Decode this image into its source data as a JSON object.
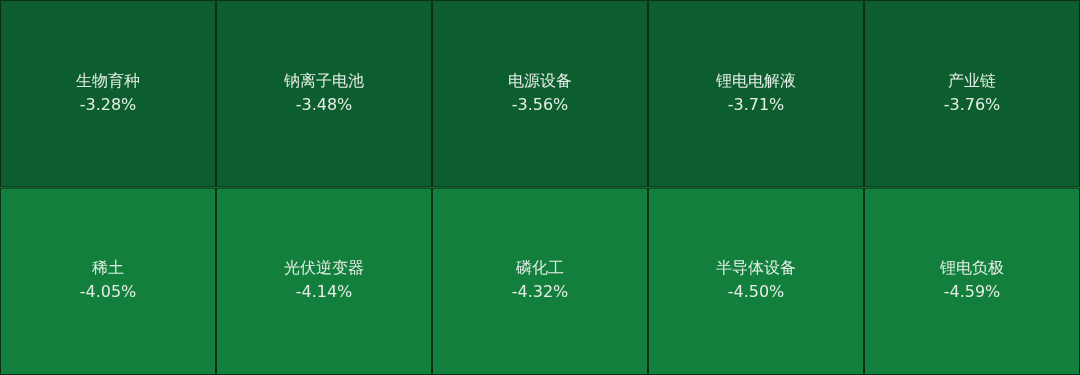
{
  "chart_data": {
    "type": "other",
    "categories": [
      "生物育种",
      "钠离子电池",
      "电源设备",
      "锂电电解液",
      "产业链",
      "稀土",
      "光伏逆变器",
      "磷化工",
      "半导体设备",
      "锂电负极"
    ],
    "values": [
      -3.28,
      -3.48,
      -3.56,
      -3.71,
      -3.76,
      -4.05,
      -4.14,
      -4.32,
      -4.5,
      -4.59
    ],
    "value_labels": [
      "-3.28%",
      "-3.48%",
      "-3.56%",
      "-3.71%",
      "-3.76%",
      "-4.05%",
      "-4.14%",
      "-4.32%",
      "-4.50%",
      "-4.59%"
    ],
    "colors": [
      "#0d5e2e",
      "#0d5e2e",
      "#0d5e2e",
      "#0d5e2e",
      "#0d5e2e",
      "#127f3c",
      "#127f3c",
      "#127f3c",
      "#127f3c",
      "#127f3c"
    ]
  }
}
